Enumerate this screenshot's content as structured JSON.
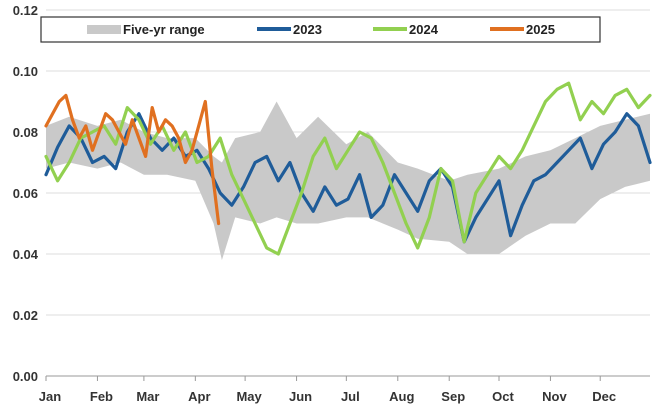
{
  "chart_data": {
    "type": "line",
    "title": "",
    "xlabel": "",
    "ylabel": "",
    "ylim": [
      0.0,
      0.12
    ],
    "yticks": [
      "0.00",
      "0.02",
      "0.04",
      "0.06",
      "0.08",
      "0.10",
      "0.12"
    ],
    "y_tick_values": [
      0.0,
      0.02,
      0.04,
      0.06,
      0.08,
      0.1,
      0.12
    ],
    "x_tick_labels": [
      "Jan",
      "Feb",
      "Mar",
      "Apr",
      "May",
      "Jun",
      "Jul",
      "Aug",
      "Sep",
      "Oct",
      "Nov",
      "Dec"
    ],
    "x_domain_days": [
      1,
      365
    ],
    "grid": "horizontal",
    "legend_position": "top",
    "legend": [
      {
        "label": "Five-yr range",
        "color": "#c9c9c9",
        "kind": "band"
      },
      {
        "label": "2023",
        "color": "#1f5c99",
        "kind": "line"
      },
      {
        "label": "2024",
        "color": "#92d050",
        "kind": "line"
      },
      {
        "label": "2025",
        "color": "#e07020",
        "kind": "line"
      }
    ],
    "band": {
      "name": "Five-yr range",
      "color": "#c9c9c9",
      "points": [
        {
          "x": 1,
          "low": 0.068,
          "high": 0.082
        },
        {
          "x": 15,
          "low": 0.07,
          "high": 0.085
        },
        {
          "x": 32,
          "low": 0.068,
          "high": 0.082
        },
        {
          "x": 46,
          "low": 0.07,
          "high": 0.084
        },
        {
          "x": 60,
          "low": 0.066,
          "high": 0.08
        },
        {
          "x": 74,
          "low": 0.066,
          "high": 0.078
        },
        {
          "x": 91,
          "low": 0.064,
          "high": 0.078
        },
        {
          "x": 102,
          "low": 0.05,
          "high": 0.072
        },
        {
          "x": 107,
          "low": 0.038,
          "high": 0.07
        },
        {
          "x": 115,
          "low": 0.052,
          "high": 0.078
        },
        {
          "x": 130,
          "low": 0.05,
          "high": 0.08
        },
        {
          "x": 140,
          "low": 0.052,
          "high": 0.09
        },
        {
          "x": 152,
          "low": 0.05,
          "high": 0.078
        },
        {
          "x": 165,
          "low": 0.05,
          "high": 0.085
        },
        {
          "x": 182,
          "low": 0.052,
          "high": 0.076
        },
        {
          "x": 195,
          "low": 0.052,
          "high": 0.08
        },
        {
          "x": 213,
          "low": 0.048,
          "high": 0.07
        },
        {
          "x": 225,
          "low": 0.045,
          "high": 0.068
        },
        {
          "x": 244,
          "low": 0.044,
          "high": 0.064
        },
        {
          "x": 255,
          "low": 0.04,
          "high": 0.066
        },
        {
          "x": 274,
          "low": 0.04,
          "high": 0.068
        },
        {
          "x": 290,
          "low": 0.046,
          "high": 0.072
        },
        {
          "x": 305,
          "low": 0.05,
          "high": 0.074
        },
        {
          "x": 320,
          "low": 0.05,
          "high": 0.078
        },
        {
          "x": 335,
          "low": 0.058,
          "high": 0.082
        },
        {
          "x": 350,
          "low": 0.062,
          "high": 0.084
        },
        {
          "x": 365,
          "low": 0.064,
          "high": 0.086
        }
      ]
    },
    "series": [
      {
        "name": "2023",
        "color": "#1f5c99",
        "x": [
          1,
          8,
          15,
          22,
          29,
          36,
          43,
          50,
          57,
          64,
          71,
          78,
          85,
          92,
          99,
          106,
          113,
          120,
          127,
          134,
          141,
          148,
          155,
          162,
          169,
          176,
          183,
          190,
          197,
          204,
          211,
          218,
          225,
          232,
          239,
          246,
          253,
          260,
          267,
          274,
          281,
          288,
          295,
          302,
          309,
          316,
          323,
          330,
          337,
          344,
          351,
          358,
          365
        ],
        "values": [
          0.066,
          0.075,
          0.082,
          0.078,
          0.07,
          0.072,
          0.068,
          0.08,
          0.086,
          0.078,
          0.074,
          0.078,
          0.072,
          0.074,
          0.068,
          0.06,
          0.056,
          0.062,
          0.07,
          0.072,
          0.064,
          0.07,
          0.06,
          0.054,
          0.062,
          0.056,
          0.058,
          0.066,
          0.052,
          0.056,
          0.066,
          0.06,
          0.054,
          0.064,
          0.068,
          0.062,
          0.044,
          0.052,
          0.058,
          0.064,
          0.046,
          0.056,
          0.064,
          0.066,
          0.07,
          0.074,
          0.078,
          0.068,
          0.076,
          0.08,
          0.086,
          0.082,
          0.07
        ]
      },
      {
        "name": "2024",
        "color": "#92d050",
        "x": [
          1,
          8,
          15,
          22,
          29,
          36,
          43,
          50,
          57,
          64,
          71,
          78,
          85,
          92,
          99,
          106,
          113,
          120,
          127,
          134,
          141,
          148,
          155,
          162,
          169,
          176,
          183,
          190,
          197,
          204,
          211,
          218,
          225,
          232,
          239,
          246,
          253,
          260,
          267,
          274,
          281,
          288,
          295,
          302,
          309,
          316,
          323,
          330,
          337,
          344,
          351,
          358,
          365
        ],
        "values": [
          0.072,
          0.064,
          0.07,
          0.078,
          0.08,
          0.082,
          0.076,
          0.088,
          0.084,
          0.076,
          0.082,
          0.074,
          0.08,
          0.07,
          0.072,
          0.078,
          0.066,
          0.058,
          0.05,
          0.042,
          0.04,
          0.05,
          0.06,
          0.072,
          0.078,
          0.068,
          0.074,
          0.08,
          0.078,
          0.07,
          0.06,
          0.05,
          0.042,
          0.052,
          0.068,
          0.064,
          0.044,
          0.06,
          0.066,
          0.072,
          0.068,
          0.074,
          0.082,
          0.09,
          0.094,
          0.096,
          0.084,
          0.09,
          0.086,
          0.092,
          0.094,
          0.088,
          0.092
        ]
      },
      {
        "name": "2025",
        "color": "#e07020",
        "x": [
          1,
          5,
          9,
          13,
          17,
          21,
          25,
          29,
          33,
          37,
          41,
          45,
          49,
          53,
          57,
          61,
          65,
          69,
          73,
          77,
          81,
          85,
          89,
          93,
          97,
          101,
          105
        ],
        "values": [
          0.082,
          0.086,
          0.09,
          0.092,
          0.084,
          0.078,
          0.082,
          0.074,
          0.08,
          0.086,
          0.084,
          0.08,
          0.076,
          0.084,
          0.078,
          0.072,
          0.088,
          0.08,
          0.084,
          0.082,
          0.078,
          0.07,
          0.074,
          0.082,
          0.09,
          0.068,
          0.05
        ]
      }
    ]
  }
}
